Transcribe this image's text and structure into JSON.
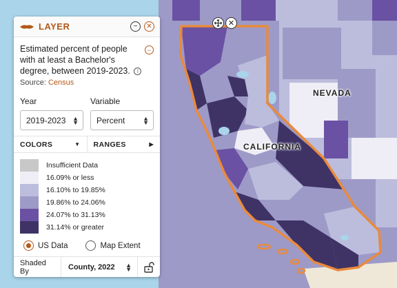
{
  "panel": {
    "title": "LAYER",
    "minimize_glyph": "−",
    "close_glyph": "✕",
    "description": "Estimated percent of people with at least a Bachelor's degree, between 2019-2023.",
    "info_glyph": "i",
    "collapse_glyph": "−",
    "source_label": "Source:",
    "source_name": "Census",
    "year_label": "Year",
    "year_value": "2019-2023",
    "variable_label": "Variable",
    "variable_value": "Percent",
    "tabs": [
      {
        "label": "COLORS",
        "arrow": "▼"
      },
      {
        "label": "RANGES",
        "arrow": "▶"
      }
    ],
    "legend": [
      {
        "label": "Insufficient Data",
        "color": "#c8c8c8"
      },
      {
        "label": "16.09% or less",
        "color": "#efedf5"
      },
      {
        "label": "16.10% to 19.85%",
        "color": "#bcbddc"
      },
      {
        "label": "19.86% to 24.06%",
        "color": "#9e9ac8"
      },
      {
        "label": "24.07% to 31.13%",
        "color": "#6a51a3"
      },
      {
        "label": "31.14% or greater",
        "color": "#3f3366"
      }
    ],
    "radio_us": "US Data",
    "radio_extent": "Map Extent",
    "shaded_by_label": "Shaded By",
    "shaded_by_value": "County, 2022"
  },
  "map": {
    "label_nevada": "NEVADA",
    "label_california": "CALIFORNIA",
    "move_icon": "move-icon",
    "close_glyph": "✕",
    "selection_outline_color": "#e98a3c",
    "water_color": "#a9d4ea"
  }
}
